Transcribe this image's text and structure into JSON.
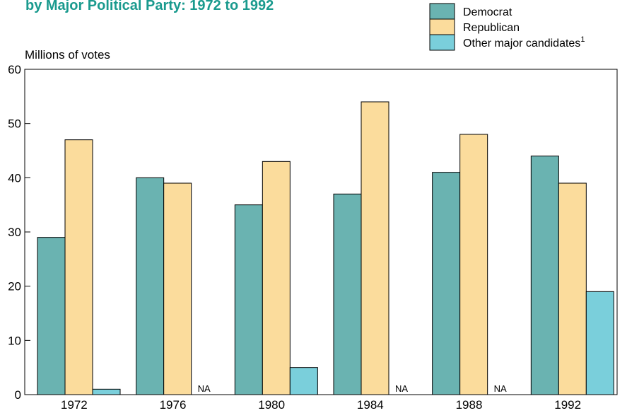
{
  "chart_data": {
    "type": "bar",
    "title": "by Major Political Party:  1972 to 1992",
    "ylabel": "Millions of votes",
    "xlabel": "",
    "ylim": [
      0,
      60
    ],
    "yticks": [
      0,
      10,
      20,
      30,
      40,
      50,
      60
    ],
    "categories": [
      "1972",
      "1976",
      "1980",
      "1984",
      "1988",
      "1992"
    ],
    "series": [
      {
        "name": "Democrat",
        "color": "#6ab3b1",
        "values": [
          29,
          40,
          35,
          37,
          41,
          44
        ]
      },
      {
        "name": "Republican",
        "color": "#fbdc9c",
        "values": [
          47,
          39,
          43,
          54,
          48,
          39
        ]
      },
      {
        "name": "Other major candidates",
        "name_sup": "1",
        "color": "#7acfdb",
        "values": [
          1,
          null,
          5,
          null,
          null,
          19
        ]
      }
    ],
    "na_label": "NA",
    "legend_position": "top-right",
    "grid": false
  }
}
